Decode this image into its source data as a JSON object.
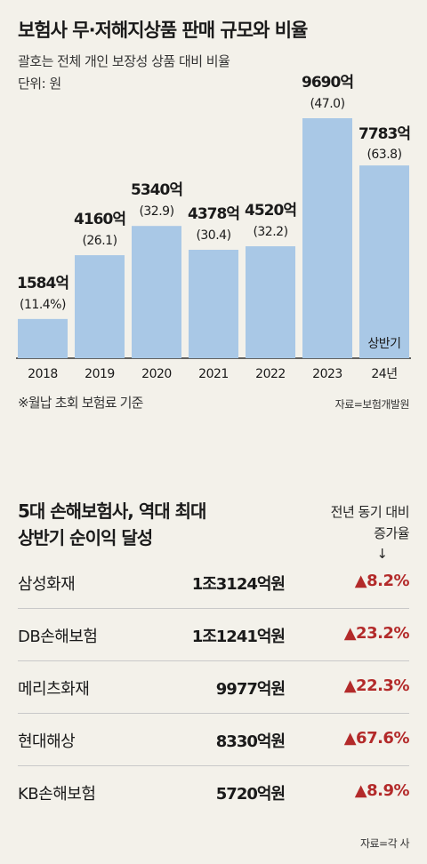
{
  "chart_data": {
    "type": "bar",
    "title": "보험사 무·저해지상품 판매 규모와 비율",
    "subtitle": "괄호는 전체 개인 보장성 상품 대비 비율",
    "unit": "단위: 원",
    "categories": [
      "2018",
      "2019",
      "2020",
      "2021",
      "2022",
      "2023",
      "24년"
    ],
    "values": [
      1584,
      4160,
      5340,
      4378,
      4520,
      9690,
      7783
    ],
    "value_labels": [
      "1584억",
      "4160억",
      "5340억",
      "4378억",
      "4520억",
      "9690억",
      "7783억"
    ],
    "pct_labels": [
      "(11.4%)",
      "(26.1)",
      "(32.9)",
      "(30.4)",
      "(32.2)",
      "(47.0)",
      "(63.8)"
    ],
    "annotation": "상반기",
    "ylim": [
      0,
      10000
    ],
    "grid": false,
    "bar_color": "#a9c8e6",
    "annotation_bar_color": "#a9c8e6"
  },
  "footnote": "※월납 초회 보험료 기준",
  "source1": "자료=보험개발원",
  "table": {
    "title_line1": "5대 손해보험사, 역대 최대",
    "title_line2": "상반기 순이익 달성",
    "col_head_line1": "전년 동기 대비",
    "col_head_line2": "증가율",
    "arrow": "↓",
    "rows": [
      {
        "name": "삼성화재",
        "profit": "1조3124억원",
        "growth": "▲8.2%"
      },
      {
        "name": "DB손해보험",
        "profit": "1조1241억원",
        "growth": "▲23.2%"
      },
      {
        "name": "메리츠화재",
        "profit": "9977억원",
        "growth": "▲22.3%"
      },
      {
        "name": "현대해상",
        "profit": "8330억원",
        "growth": "▲67.6%"
      },
      {
        "name": "KB손해보험",
        "profit": "5720억원",
        "growth": "▲8.9%"
      }
    ]
  },
  "source2": "자료=각 사",
  "colors": {
    "background": "#f3f1ea",
    "bar": "#a9c8e6",
    "growth": "#b32a2a"
  }
}
